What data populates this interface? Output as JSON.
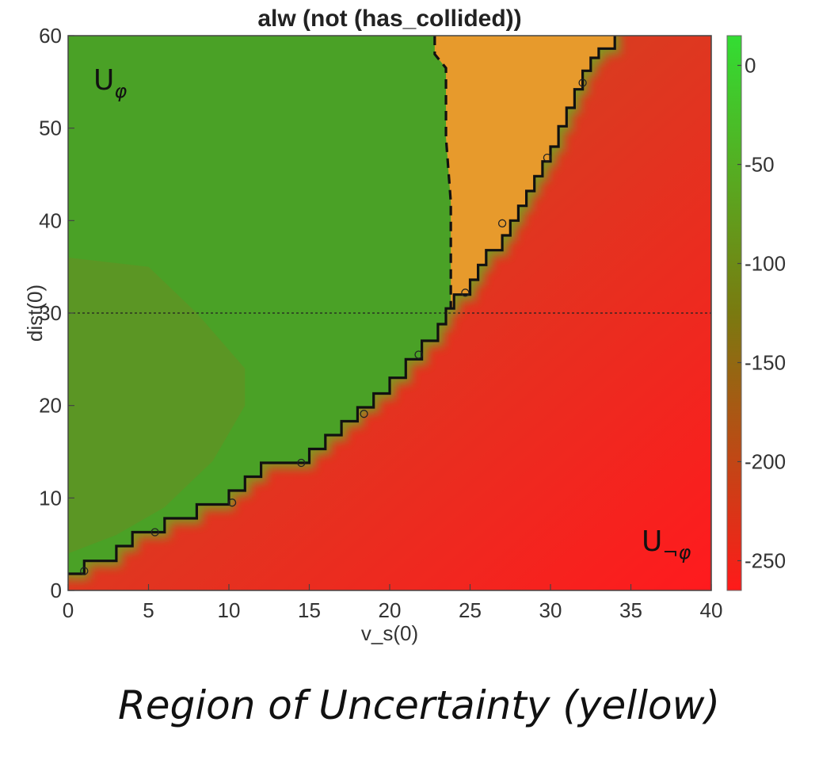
{
  "caption": "Region of Uncertainty (yellow)",
  "chart_data": {
    "type": "heatmap",
    "title": "alw (not (has_collided))",
    "xlabel": "v_s(0)",
    "ylabel": "dist(0)",
    "xlim": [
      0,
      40
    ],
    "ylim": [
      0,
      60
    ],
    "xticks": [
      "0",
      "5",
      "10",
      "15",
      "20",
      "25",
      "30",
      "35",
      "40"
    ],
    "yticks": [
      "0",
      "10",
      "20",
      "30",
      "40",
      "50",
      "60"
    ],
    "colorbar": {
      "range": [
        -265,
        15
      ],
      "ticks": [
        "0",
        "-50",
        "-100",
        "-150",
        "-200",
        "-250"
      ],
      "tick_values": [
        0,
        -50,
        -100,
        -150,
        -200,
        -250
      ],
      "colors": [
        "#ff1a1a",
        "#7a7a10",
        "#33dd33"
      ]
    },
    "region_labels": {
      "satisfied": {
        "base": "U",
        "sub": "φ"
      },
      "violated": {
        "base": "U",
        "sub": "¬φ"
      }
    },
    "regions": {
      "satisfied_color": "#4aa126",
      "satisfied_dark_color": "#6a8e22",
      "violated_color": "#e8301e",
      "uncertain_color": "#e79a2c"
    },
    "boundary_steps": [
      [
        0,
        1.8
      ],
      [
        1,
        1.8
      ],
      [
        1,
        3.2
      ],
      [
        3,
        3.2
      ],
      [
        3,
        4.8
      ],
      [
        4,
        4.8
      ],
      [
        4,
        6.3
      ],
      [
        6,
        6.3
      ],
      [
        6,
        7.8
      ],
      [
        8,
        7.8
      ],
      [
        8,
        9.3
      ],
      [
        10,
        9.3
      ],
      [
        10,
        10.8
      ],
      [
        11,
        10.8
      ],
      [
        11,
        12.3
      ],
      [
        12,
        12.3
      ],
      [
        12,
        13.8
      ],
      [
        15,
        13.8
      ],
      [
        15,
        15.3
      ],
      [
        16,
        15.3
      ],
      [
        16,
        16.8
      ],
      [
        17,
        16.8
      ],
      [
        17,
        18.3
      ],
      [
        18,
        18.3
      ],
      [
        18,
        19.8
      ],
      [
        19,
        19.8
      ],
      [
        19,
        21.3
      ],
      [
        20,
        21.3
      ],
      [
        20,
        23
      ],
      [
        21,
        23
      ],
      [
        21,
        25
      ],
      [
        22,
        25
      ],
      [
        22,
        27
      ],
      [
        23,
        27
      ],
      [
        23,
        28.8
      ],
      [
        23.5,
        28.8
      ],
      [
        23.5,
        30.5
      ],
      [
        24,
        30.5
      ],
      [
        24,
        32
      ],
      [
        25,
        32
      ],
      [
        25,
        33.6
      ],
      [
        25.5,
        33.6
      ],
      [
        25.5,
        35.2
      ],
      [
        26,
        35.2
      ],
      [
        26,
        36.8
      ],
      [
        27,
        36.8
      ],
      [
        27,
        38.4
      ],
      [
        27.5,
        38.4
      ],
      [
        27.5,
        40
      ],
      [
        28,
        40
      ],
      [
        28,
        41.6
      ],
      [
        28.5,
        41.6
      ],
      [
        28.5,
        43.2
      ],
      [
        29,
        43.2
      ],
      [
        29,
        44.8
      ],
      [
        29.5,
        44.8
      ],
      [
        29.5,
        46.4
      ],
      [
        30,
        46.4
      ],
      [
        30,
        48
      ],
      [
        30.5,
        48
      ],
      [
        30.5,
        50.2
      ],
      [
        31,
        50.2
      ],
      [
        31,
        52.2
      ],
      [
        31.5,
        52.2
      ],
      [
        31.5,
        54.2
      ],
      [
        32,
        54.2
      ],
      [
        32,
        56.2
      ],
      [
        32.5,
        56.2
      ],
      [
        32.5,
        57.6
      ],
      [
        33,
        57.6
      ],
      [
        33,
        58.6
      ],
      [
        34,
        58.6
      ],
      [
        34,
        60
      ]
    ],
    "uncertainty_dashed_boundary": [
      [
        22.8,
        60
      ],
      [
        22.8,
        58
      ],
      [
        23.5,
        56.5
      ],
      [
        23.5,
        49
      ],
      [
        23.8,
        42
      ],
      [
        23.8,
        30.5
      ]
    ],
    "sample_points": [
      [
        1,
        2.1
      ],
      [
        5.4,
        6.3
      ],
      [
        10.2,
        9.5
      ],
      [
        14.5,
        13.8
      ],
      [
        18.4,
        19.1
      ],
      [
        21.8,
        25.5
      ],
      [
        24.7,
        32.2
      ],
      [
        27,
        39.7
      ],
      [
        29.8,
        46.8
      ],
      [
        32,
        54.9
      ]
    ],
    "reference_line_y": 30
  }
}
